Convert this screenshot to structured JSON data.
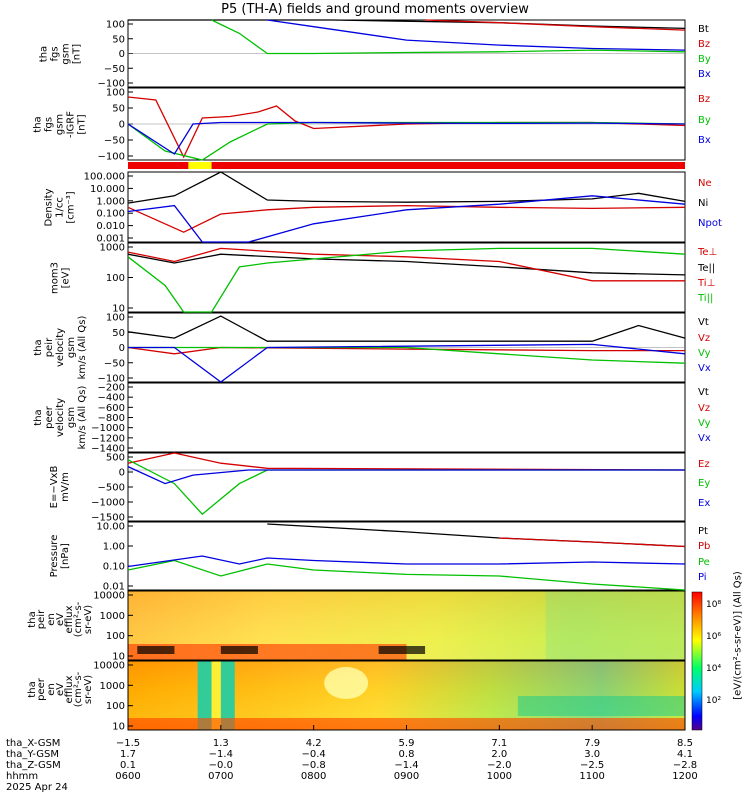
{
  "title": "P5 (TH-A) fields and ground moments overview",
  "panels": [
    {
      "id": "fgs",
      "ylabel": [
        "tha",
        "fgs",
        "gsm",
        "[nT]"
      ],
      "ticks": [
        "100",
        "50",
        "0",
        "−50",
        "−100"
      ],
      "legend": [
        {
          "t": "Bt",
          "c": "#000000"
        },
        {
          "t": "Bz",
          "c": "#d40000"
        },
        {
          "t": "By",
          "c": "#00c000"
        },
        {
          "t": "Bx",
          "c": "#0000e0"
        }
      ]
    },
    {
      "id": "fgs_dt",
      "ylabel": [
        "tha",
        "fgs",
        "gsm",
        "-IGRF",
        "[nT]"
      ],
      "ticks": [
        "100",
        "50",
        "0",
        "−50",
        "−100"
      ],
      "legend": [
        {
          "t": "Bz",
          "c": "#d40000"
        },
        {
          "t": "By",
          "c": "#00c000"
        },
        {
          "t": "Bx",
          "c": "#0000e0"
        }
      ]
    },
    {
      "id": "density",
      "ylabel": [
        "Density",
        "1/cc",
        "[cm⁻³]"
      ],
      "ticks": [
        "100.000",
        "10.000",
        "1.000",
        "0.100",
        "0.010",
        "0.001"
      ],
      "legend": [
        {
          "t": "Ne",
          "c": "#d40000"
        },
        {
          "t": "Ni",
          "c": "#000000"
        },
        {
          "t": "Npot",
          "c": "#0000e0"
        }
      ]
    },
    {
      "id": "temp",
      "ylabel": [
        "mom3",
        "[eV]"
      ],
      "ticks": [
        "1000",
        "100",
        "10"
      ],
      "legend": [
        {
          "t": "Te⊥",
          "c": "#d40000"
        },
        {
          "t": "Te||",
          "c": "#000000"
        },
        {
          "t": "Ti⊥",
          "c": "#d40000"
        },
        {
          "t": "Ti||",
          "c": "#00c000"
        }
      ]
    },
    {
      "id": "peir_vel",
      "ylabel": [
        "tha",
        "peir",
        "velocity",
        "gsm",
        "km/s (All Qs)"
      ],
      "ticks": [
        "100",
        "50",
        "0",
        "−50",
        "−100"
      ],
      "legend": [
        {
          "t": "Vt",
          "c": "#000000"
        },
        {
          "t": "Vz",
          "c": "#d40000"
        },
        {
          "t": "Vy",
          "c": "#00c000"
        },
        {
          "t": "Vx",
          "c": "#0000e0"
        }
      ]
    },
    {
      "id": "peer_vel",
      "ylabel": [
        "tha",
        "peer",
        "velocity",
        "gsm",
        "km/s (All Qs)"
      ],
      "ticks": [
        "−200",
        "−400",
        "−600",
        "−800",
        "−1000",
        "−1200",
        "−1400"
      ],
      "legend": [
        {
          "t": "Vt",
          "c": "#000000"
        },
        {
          "t": "Vz",
          "c": "#d40000"
        },
        {
          "t": "Vy",
          "c": "#00c000"
        },
        {
          "t": "Vx",
          "c": "#0000e0"
        }
      ]
    },
    {
      "id": "efield",
      "ylabel": [
        "E=−VxB",
        "mV/m"
      ],
      "ticks": [
        "500",
        "0",
        "−500",
        "−1000",
        "−1500"
      ],
      "legend": [
        {
          "t": "Ez",
          "c": "#d40000"
        },
        {
          "t": "Ey",
          "c": "#00c000"
        },
        {
          "t": "Ex",
          "c": "#0000e0"
        }
      ]
    },
    {
      "id": "pressure",
      "ylabel": [
        "Pressure",
        "[nPa]"
      ],
      "ticks": [
        "10.00",
        "1.00",
        "0.10",
        "0.01"
      ],
      "legend": [
        {
          "t": "Pt",
          "c": "#000000"
        },
        {
          "t": "Pb",
          "c": "#d40000"
        },
        {
          "t": "Pe",
          "c": "#00c000"
        },
        {
          "t": "Pi",
          "c": "#0000e0"
        }
      ]
    },
    {
      "id": "peir_flux",
      "ylabel": [
        "tha",
        "peir",
        "en",
        "eV",
        "efflux",
        "(cm²-s-",
        "sr-eV)"
      ],
      "ticks": [
        "10000",
        "1000",
        "100",
        "10"
      ],
      "legend": []
    },
    {
      "id": "peer_flux",
      "ylabel": [
        "tha",
        "peer",
        "en",
        "eV",
        "efflux",
        "(cm²-s-",
        "sr-eV)"
      ],
      "ticks": [
        "10000",
        "1000",
        "100",
        "10"
      ],
      "legend": []
    }
  ],
  "colorbar": {
    "ticks": [
      "10⁸",
      "10⁶",
      "10⁴",
      "10²"
    ],
    "label": "[eV/(cm²-s-sr-eV)] (All Qs)"
  },
  "footer": {
    "rows": [
      "tha_X-GSM",
      "tha_Y-GSM",
      "tha_Z-GSM",
      "hhmm",
      "2025 Apr 24"
    ],
    "cols": [
      {
        "x": "−1.5",
        "y": "1.7",
        "z": "0.1",
        "t": "0600"
      },
      {
        "x": "1.3",
        "y": "−1.4",
        "z": "−0.0",
        "t": "0700"
      },
      {
        "x": "4.2",
        "y": "−0.4",
        "z": "−0.8",
        "t": "0800"
      },
      {
        "x": "5.9",
        "y": "0.8",
        "z": "−1.4",
        "t": "0900"
      },
      {
        "x": "7.1",
        "y": "2.0",
        "z": "−2.0",
        "t": "1000"
      },
      {
        "x": "7.9",
        "y": "3.0",
        "z": "−2.5",
        "t": "1100"
      },
      {
        "x": "8.5",
        "y": "4.1",
        "z": "−2.8",
        "t": "1200"
      }
    ]
  },
  "chart_data": {
    "type": "line",
    "title": "P5 (TH-A) fields and ground moments overview",
    "x": [
      "0600",
      "0700",
      "0800",
      "0900",
      "1000",
      "1100",
      "1200"
    ],
    "series": [
      {
        "name": "Bt",
        "panel": "fgs",
        "points": [
          [
            0.0,
            100
          ],
          [
            2.2,
            100
          ],
          [
            4,
            92
          ],
          [
            5,
            82
          ],
          [
            6,
            75
          ]
        ]
      },
      {
        "name": "Bz",
        "panel": "fgs",
        "points": [
          [
            3.2,
            100
          ],
          [
            4,
            92
          ],
          [
            5,
            80
          ],
          [
            6,
            70
          ]
        ]
      },
      {
        "name": "By",
        "panel": "fgs",
        "points": [
          [
            0.9,
            100
          ],
          [
            1.2,
            60
          ],
          [
            1.5,
            0
          ],
          [
            2,
            0
          ],
          [
            3,
            3
          ],
          [
            4,
            5
          ],
          [
            5,
            10
          ],
          [
            6,
            5
          ]
        ]
      },
      {
        "name": "Bx",
        "panel": "fgs",
        "points": [
          [
            1.5,
            100
          ],
          [
            2,
            80
          ],
          [
            3,
            40
          ],
          [
            4,
            25
          ],
          [
            5,
            15
          ],
          [
            6,
            10
          ]
        ]
      },
      {
        "name": "Bz",
        "panel": "fgs_dt",
        "points": [
          [
            0,
            90
          ],
          [
            0.3,
            80
          ],
          [
            0.6,
            -110
          ],
          [
            0.8,
            20
          ],
          [
            1.1,
            25
          ],
          [
            1.4,
            40
          ],
          [
            1.6,
            60
          ],
          [
            1.8,
            10
          ],
          [
            2,
            -15
          ],
          [
            3,
            0
          ],
          [
            4,
            5
          ],
          [
            5,
            5
          ],
          [
            6,
            -5
          ]
        ]
      },
      {
        "name": "By",
        "panel": "fgs_dt",
        "points": [
          [
            0,
            0
          ],
          [
            0.4,
            -90
          ],
          [
            0.8,
            -120
          ],
          [
            1.1,
            -60
          ],
          [
            1.5,
            0
          ],
          [
            2,
            5
          ],
          [
            3,
            5
          ],
          [
            4,
            5
          ],
          [
            5,
            5
          ],
          [
            6,
            0
          ]
        ]
      },
      {
        "name": "Bx",
        "panel": "fgs_dt",
        "points": [
          [
            0,
            0
          ],
          [
            0.5,
            -100
          ],
          [
            0.7,
            0
          ],
          [
            1,
            5
          ],
          [
            2,
            5
          ],
          [
            3,
            3
          ],
          [
            4,
            2
          ],
          [
            5,
            3
          ],
          [
            6,
            0
          ]
        ]
      },
      {
        "name": "Ni",
        "panel": "density",
        "points": [
          [
            0,
            0.6
          ],
          [
            0.5,
            2
          ],
          [
            1,
            100
          ],
          [
            1.5,
            1
          ],
          [
            2,
            0.8
          ],
          [
            3,
            0.7
          ],
          [
            4,
            0.8
          ],
          [
            5,
            1.2
          ],
          [
            5.5,
            3
          ],
          [
            6,
            0.8
          ]
        ]
      },
      {
        "name": "Ne",
        "panel": "density",
        "points": [
          [
            0,
            0.3
          ],
          [
            0.6,
            0.005
          ],
          [
            1,
            0.1
          ],
          [
            1.5,
            0.2
          ],
          [
            2,
            0.3
          ],
          [
            3,
            0.4
          ],
          [
            4,
            0.3
          ],
          [
            5,
            0.25
          ],
          [
            6,
            0.3
          ]
        ]
      },
      {
        "name": "Npot",
        "panel": "density",
        "points": [
          [
            0,
            0.15
          ],
          [
            0.5,
            0.4
          ],
          [
            0.8,
            0.001
          ],
          [
            1.3,
            0.001
          ],
          [
            2,
            0.02
          ],
          [
            3,
            0.2
          ],
          [
            4,
            0.5
          ],
          [
            5,
            2
          ],
          [
            6,
            0.5
          ]
        ]
      },
      {
        "name": "Te||",
        "panel": "temp",
        "points": [
          [
            0,
            1500
          ],
          [
            0.5,
            700
          ],
          [
            1,
            1500
          ],
          [
            2,
            1000
          ],
          [
            3,
            800
          ],
          [
            4,
            500
          ],
          [
            5,
            300
          ],
          [
            6,
            250
          ]
        ]
      },
      {
        "name": "Te⊥",
        "panel": "temp",
        "points": [
          [
            0,
            1800
          ],
          [
            0.5,
            800
          ],
          [
            1,
            2500
          ],
          [
            2,
            1500
          ],
          [
            3,
            1200
          ],
          [
            4,
            800
          ],
          [
            5,
            150
          ],
          [
            6,
            150
          ]
        ]
      },
      {
        "name": "Ti||",
        "panel": "temp",
        "points": [
          [
            0,
            1200
          ],
          [
            0.4,
            100
          ],
          [
            0.6,
            10
          ],
          [
            0.9,
            10
          ],
          [
            1.2,
            500
          ],
          [
            1.5,
            700
          ],
          [
            3,
            2000
          ],
          [
            4,
            2500
          ],
          [
            5,
            2500
          ],
          [
            6,
            1500
          ]
        ]
      },
      {
        "name": "Vt",
        "panel": "peir_vel",
        "points": [
          [
            0,
            50
          ],
          [
            0.5,
            30
          ],
          [
            1,
            100
          ],
          [
            1.5,
            20
          ],
          [
            3,
            20
          ],
          [
            5,
            20
          ],
          [
            5.5,
            70
          ],
          [
            6,
            30
          ]
        ]
      },
      {
        "name": "Vz",
        "panel": "peir_vel",
        "points": [
          [
            0,
            0
          ],
          [
            0.5,
            -20
          ],
          [
            1,
            0
          ],
          [
            3,
            -5
          ],
          [
            5,
            -10
          ],
          [
            6,
            -10
          ]
        ]
      },
      {
        "name": "Vy",
        "panel": "peir_vel",
        "points": [
          [
            0,
            0
          ],
          [
            1,
            0
          ],
          [
            3,
            0
          ],
          [
            4,
            -20
          ],
          [
            5,
            -40
          ],
          [
            6,
            -50
          ]
        ]
      },
      {
        "name": "Vx",
        "panel": "peir_vel",
        "points": [
          [
            0,
            0
          ],
          [
            0.5,
            0
          ],
          [
            1,
            -110
          ],
          [
            1.5,
            0
          ],
          [
            5,
            10
          ],
          [
            6,
            -20
          ]
        ]
      },
      {
        "name": "Ez",
        "panel": "efield",
        "points": [
          [
            0,
            200
          ],
          [
            0.5,
            500
          ],
          [
            1,
            200
          ],
          [
            1.5,
            50
          ],
          [
            6,
            0
          ]
        ]
      },
      {
        "name": "Ey",
        "panel": "efield",
        "points": [
          [
            0,
            300
          ],
          [
            0.5,
            -400
          ],
          [
            0.8,
            -1300
          ],
          [
            1.2,
            -400
          ],
          [
            1.5,
            0
          ],
          [
            6,
            0
          ]
        ]
      },
      {
        "name": "Ex",
        "panel": "efield",
        "points": [
          [
            0,
            100
          ],
          [
            0.4,
            -400
          ],
          [
            0.7,
            -150
          ],
          [
            1.3,
            0
          ],
          [
            6,
            0
          ]
        ]
      },
      {
        "name": "Pt",
        "panel": "pressure",
        "points": [
          [
            1.5,
            20
          ],
          [
            3,
            8
          ],
          [
            4,
            4
          ],
          [
            5,
            2.5
          ],
          [
            6,
            1.5
          ]
        ]
      },
      {
        "name": "Pb",
        "panel": "pressure",
        "points": [
          [
            4,
            4
          ],
          [
            5,
            2.5
          ],
          [
            6,
            1.5
          ]
        ]
      },
      {
        "name": "Pe",
        "panel": "pressure",
        "points": [
          [
            0,
            0.1
          ],
          [
            0.5,
            0.3
          ],
          [
            1,
            0.05
          ],
          [
            1.5,
            0.2
          ],
          [
            2,
            0.1
          ],
          [
            3,
            0.06
          ],
          [
            4,
            0.05
          ],
          [
            5,
            0.02
          ],
          [
            6,
            0.01
          ]
        ]
      },
      {
        "name": "Pi",
        "panel": "pressure",
        "points": [
          [
            0,
            0.15
          ],
          [
            0.8,
            0.5
          ],
          [
            1.2,
            0.2
          ],
          [
            1.5,
            0.4
          ],
          [
            2,
            0.3
          ],
          [
            3,
            0.2
          ],
          [
            4,
            0.2
          ],
          [
            5,
            0.25
          ],
          [
            6,
            0.2
          ]
        ]
      }
    ]
  }
}
